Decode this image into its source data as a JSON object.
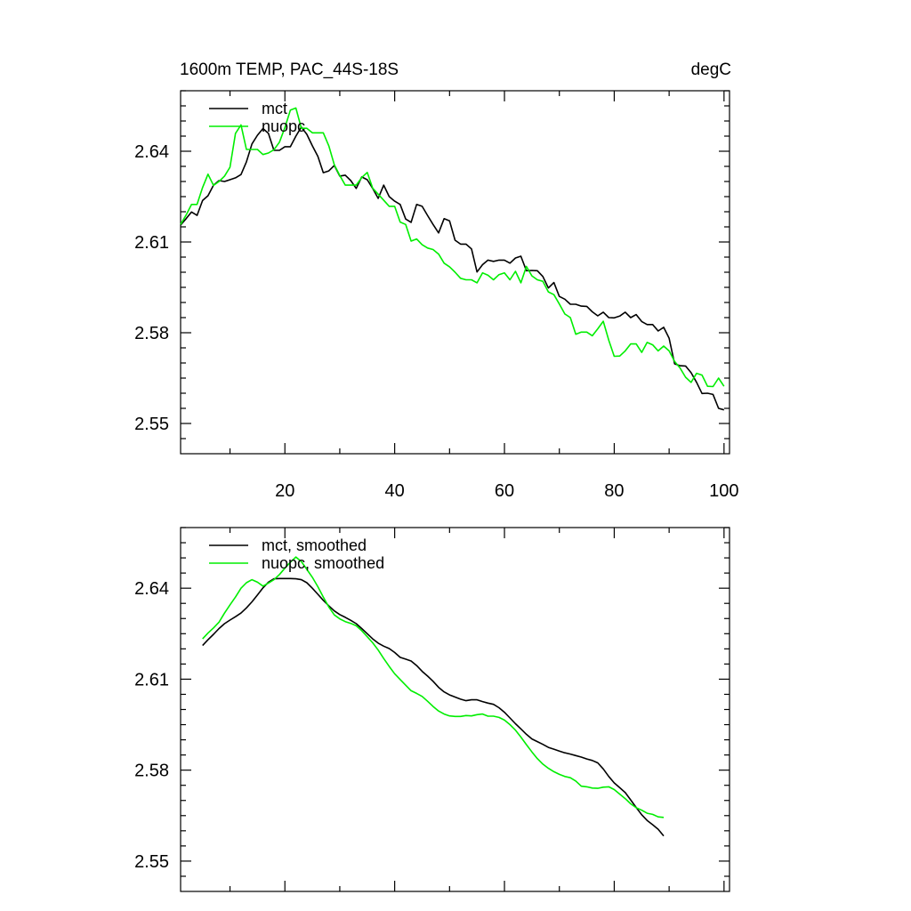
{
  "figure": {
    "title_left": "1600m TEMP, PAC_44S-18S",
    "title_right": "degC"
  },
  "chart_data": [
    {
      "type": "line",
      "xlim": [
        1,
        101
      ],
      "ylim": [
        2.54,
        2.66
      ],
      "xticks": [
        20,
        40,
        60,
        80,
        100
      ],
      "xtick_labels": [
        "20",
        "40",
        "60",
        "80",
        "100"
      ],
      "yticks": [
        2.55,
        2.58,
        2.61,
        2.64
      ],
      "ytick_labels": [
        "2.55",
        "2.58",
        "2.61",
        "2.64"
      ],
      "legend": [
        "mct",
        "nuopc"
      ],
      "series": [
        {
          "name": "mct",
          "color": "#000000",
          "x_start": 1,
          "values": [
            2.6156,
            2.6177,
            2.6199,
            2.6188,
            2.6237,
            2.6253,
            2.6288,
            2.6303,
            2.63,
            2.6306,
            2.6312,
            2.6323,
            2.6365,
            2.6424,
            2.6453,
            2.6475,
            2.6459,
            2.6403,
            2.6403,
            2.6415,
            2.6415,
            2.645,
            2.648,
            2.6456,
            2.6418,
            2.6383,
            2.6329,
            2.6335,
            2.6353,
            2.6318,
            2.6321,
            2.6303,
            2.6277,
            2.6315,
            2.6306,
            2.6277,
            2.6244,
            2.6288,
            2.625,
            2.6235,
            2.6224,
            2.6176,
            2.6165,
            2.6224,
            2.6218,
            2.6187,
            2.6158,
            2.613,
            2.6177,
            2.617,
            2.6106,
            2.6093,
            2.6093,
            2.6077,
            2.6001,
            2.6025,
            2.604,
            2.6036,
            2.604,
            2.604,
            2.603,
            2.6047,
            2.6053,
            2.6005,
            2.6006,
            2.6005,
            2.5986,
            2.5948,
            2.5966,
            2.592,
            2.5911,
            2.5894,
            2.5894,
            2.5888,
            2.5887,
            2.5869,
            2.5856,
            2.5868,
            2.585,
            2.5849,
            2.5855,
            2.5868,
            2.585,
            2.586,
            2.5837,
            2.5827,
            2.5827,
            2.5806,
            2.5818,
            2.5782,
            2.5697,
            2.5691,
            2.569,
            2.5668,
            2.5636,
            2.5599,
            2.56,
            2.5596,
            2.555,
            2.5545
          ]
        },
        {
          "name": "nuopc",
          "color": "#00ee00",
          "x_start": 1,
          "values": [
            2.6158,
            2.6189,
            2.6224,
            2.6224,
            2.628,
            2.6324,
            2.6287,
            2.63,
            2.6318,
            2.6347,
            2.6459,
            2.6487,
            2.6406,
            2.6406,
            2.6406,
            2.6389,
            2.6394,
            2.6405,
            2.643,
            2.6478,
            2.6536,
            2.6543,
            2.6476,
            2.6476,
            2.6461,
            2.6461,
            2.6461,
            2.6418,
            2.6355,
            2.632,
            2.6288,
            2.6288,
            2.6288,
            2.6313,
            2.633,
            2.6278,
            2.6258,
            2.6238,
            2.6218,
            2.6218,
            2.6166,
            2.6158,
            2.6103,
            2.611,
            2.6091,
            2.608,
            2.6075,
            2.606,
            2.603,
            2.6018,
            2.6,
            2.598,
            2.5975,
            2.5975,
            2.5965,
            2.5998,
            2.599,
            2.5975,
            2.5992,
            2.5998,
            2.5975,
            2.6003,
            2.5965,
            2.6019,
            2.5988,
            2.5975,
            2.597,
            2.5935,
            2.5926,
            2.5895,
            2.5862,
            2.585,
            2.5795,
            2.5802,
            2.5802,
            2.579,
            2.5813,
            2.5838,
            2.5775,
            2.5722,
            2.5723,
            2.574,
            2.5763,
            2.5763,
            2.5735,
            2.5768,
            2.576,
            2.574,
            2.5756,
            2.574,
            2.5705,
            2.5683,
            2.5653,
            2.5636,
            2.5666,
            2.566,
            2.5623,
            2.5622,
            2.565,
            2.5623
          ]
        }
      ]
    },
    {
      "type": "line",
      "xlim": [
        1,
        101
      ],
      "ylim": [
        2.54,
        2.66
      ],
      "xticks": [
        20,
        40,
        60,
        80,
        100
      ],
      "yticks": [
        2.55,
        2.58,
        2.61,
        2.64
      ],
      "ytick_labels": [
        "2.55",
        "2.58",
        "2.61",
        "2.64"
      ],
      "legend": [
        "mct, smoothed",
        "nuopc, smoothed"
      ],
      "series": [
        {
          "name": "mct, smoothed",
          "color": "#000000",
          "x_start": 5,
          "values": [
            2.6211,
            2.623,
            2.6248,
            2.6267,
            2.6283,
            2.6295,
            2.6306,
            2.6318,
            2.6335,
            2.6355,
            2.6378,
            2.6401,
            2.642,
            2.6431,
            2.6432,
            2.6432,
            2.6432,
            2.6431,
            2.6428,
            2.6418,
            2.64,
            2.638,
            2.636,
            2.6342,
            2.6325,
            2.6313,
            2.6304,
            2.6294,
            2.6283,
            2.6267,
            2.625,
            2.6233,
            2.6219,
            2.6209,
            2.6201,
            2.6188,
            2.6172,
            2.6166,
            2.616,
            2.6145,
            2.6126,
            2.611,
            2.6093,
            2.6073,
            2.6058,
            2.6048,
            2.6041,
            2.6034,
            2.6029,
            2.6032,
            2.6032,
            2.6026,
            2.6021,
            2.6017,
            2.6006,
            2.5991,
            2.5972,
            2.5953,
            2.5936,
            2.5918,
            2.5903,
            2.5894,
            2.5885,
            2.5875,
            2.5869,
            2.5863,
            2.5857,
            2.5853,
            2.5848,
            2.5843,
            2.5837,
            2.5832,
            2.5824,
            2.5804,
            2.5779,
            2.5758,
            2.5742,
            2.5726,
            2.5702,
            2.5677,
            2.5653,
            2.5634,
            2.562,
            2.5605,
            2.5583
          ]
        },
        {
          "name": "nuopc, smoothed",
          "color": "#00ee00",
          "x_start": 5,
          "values": [
            2.6233,
            2.6252,
            2.6269,
            2.6288,
            2.6318,
            2.6345,
            2.6371,
            2.64,
            2.6418,
            2.6428,
            2.642,
            2.6407,
            2.6417,
            2.6428,
            2.6445,
            2.6466,
            2.6486,
            2.6503,
            2.6488,
            2.6462,
            2.6436,
            2.6405,
            2.6371,
            2.6338,
            2.6312,
            2.6299,
            2.629,
            2.6284,
            2.6276,
            2.626,
            2.624,
            2.622,
            2.6196,
            2.6168,
            2.6142,
            2.6118,
            2.6099,
            2.608,
            2.6062,
            2.6053,
            2.6043,
            2.6027,
            2.601,
            2.5995,
            2.5985,
            2.5979,
            2.5977,
            2.5977,
            2.598,
            2.5979,
            2.5983,
            2.5985,
            2.5978,
            2.5978,
            2.5974,
            2.5965,
            2.595,
            2.5932,
            2.5909,
            2.5884,
            2.586,
            2.5838,
            2.582,
            2.5806,
            2.5795,
            2.5786,
            2.5779,
            2.5775,
            2.5764,
            2.5747,
            2.5745,
            2.5741,
            2.574,
            2.5744,
            2.5745,
            2.5736,
            2.5721,
            2.5706,
            2.5689,
            2.5676,
            2.5668,
            2.5658,
            2.5654,
            2.5646,
            2.5644
          ]
        }
      ]
    }
  ]
}
